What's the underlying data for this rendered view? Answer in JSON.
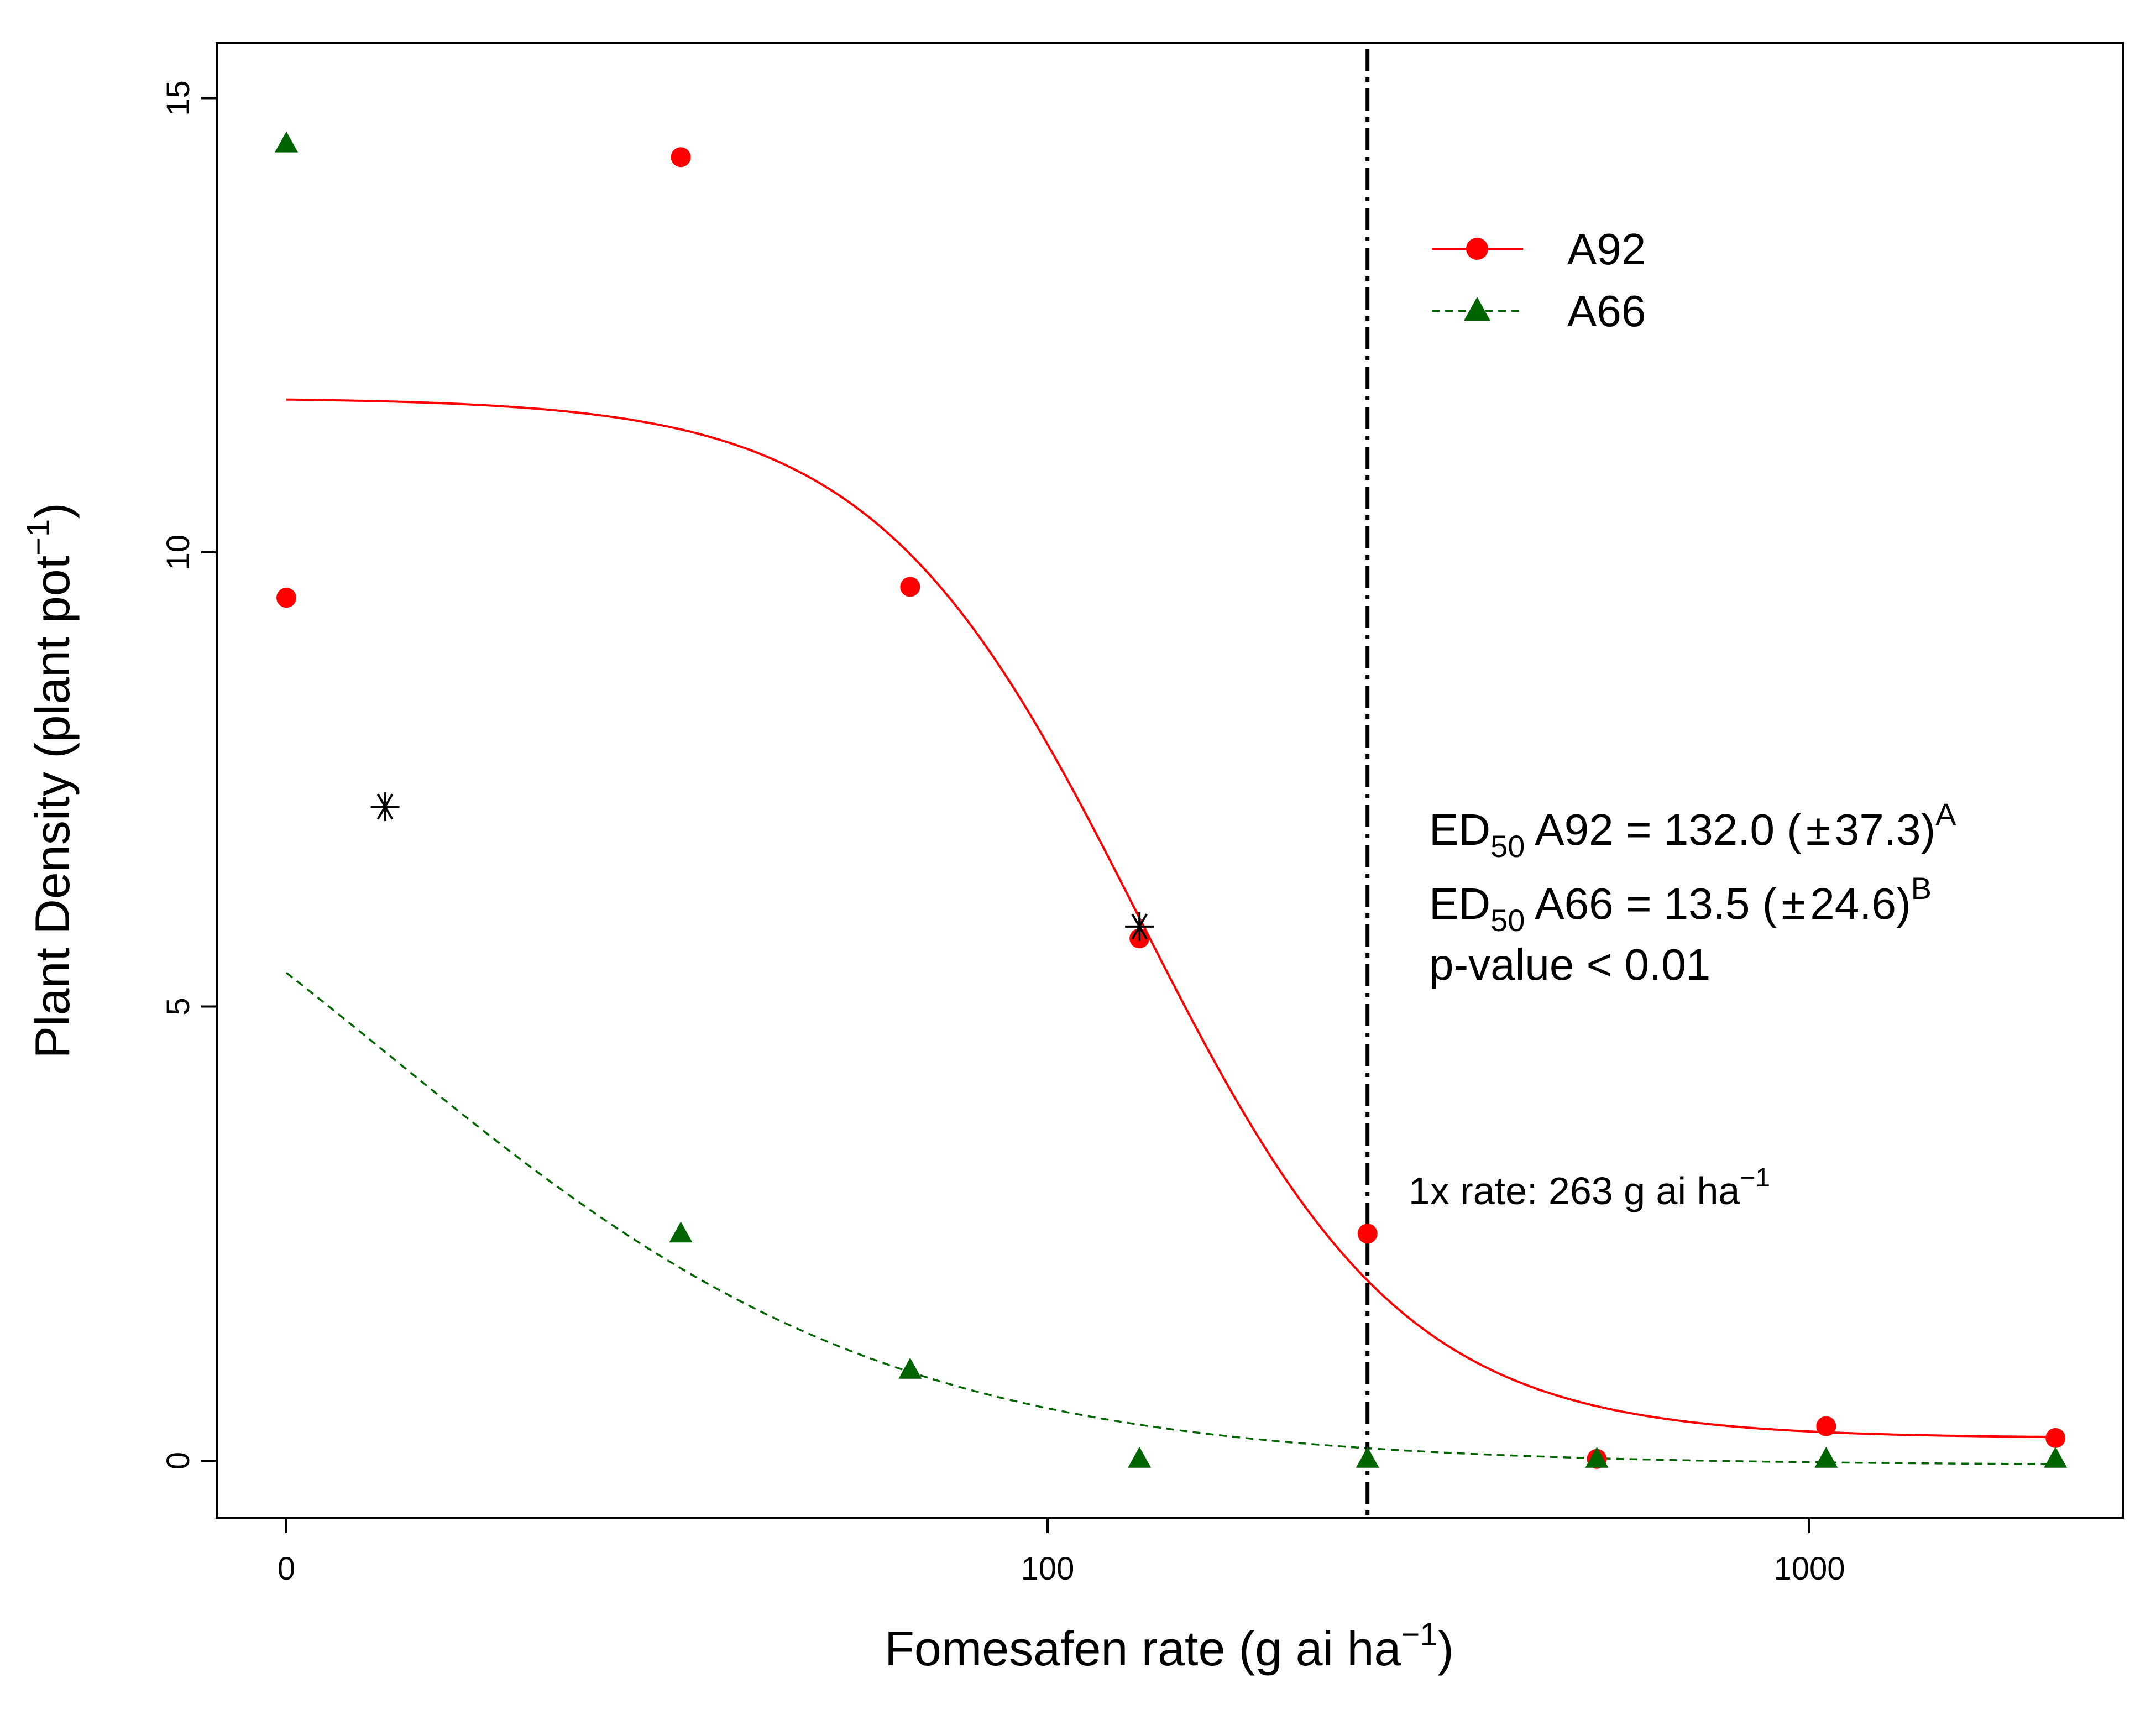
{
  "chart_data": {
    "type": "scatter",
    "xlabel": {
      "text": "Fomesafen rate (g ai ha",
      "sup": "−1",
      "close": ")"
    },
    "ylabel": {
      "text": "Plant Density (plant pot",
      "sup": "−1",
      "close": ")"
    },
    "x_scale": "log10 with the zero rate drawn at the axis origin",
    "xlim": [
      0,
      2000
    ],
    "ylim": [
      -0.6,
      15.6
    ],
    "x_ticks": [
      {
        "value": 0,
        "label": "0"
      },
      {
        "value": 100,
        "label": "100"
      },
      {
        "value": 1000,
        "label": "1000"
      }
    ],
    "y_ticks": [
      {
        "value": 0,
        "label": "0"
      },
      {
        "value": 5,
        "label": "5"
      },
      {
        "value": 10,
        "label": "10"
      },
      {
        "value": 15,
        "label": "15"
      }
    ],
    "grid": false,
    "legend_position": "top-right",
    "series": [
      {
        "name": "A92",
        "color": "#ff0000",
        "marker": "circle",
        "line": "solid",
        "points": [
          {
            "x": 0,
            "y": 9.5
          },
          {
            "x": 33,
            "y": 14.35
          },
          {
            "x": 66,
            "y": 9.62
          },
          {
            "x": 132,
            "y": 5.75
          },
          {
            "x": 263,
            "y": 2.5
          },
          {
            "x": 526,
            "y": 0.02
          },
          {
            "x": 1052,
            "y": 0.38
          },
          {
            "x": 2104,
            "y": 0.25
          }
        ],
        "fit": {
          "model": "log-logistic",
          "lower": 0.25,
          "upper": 11.7,
          "ed50": 132.0,
          "slope": 2.5
        }
      },
      {
        "name": "A66",
        "color": "#006400",
        "marker": "triangle",
        "line": "dashed",
        "points": [
          {
            "x": 0,
            "y": 14.5
          },
          {
            "x": 33,
            "y": 2.5
          },
          {
            "x": 66,
            "y": 1.0
          },
          {
            "x": 132,
            "y": 0.02
          },
          {
            "x": 263,
            "y": 0.02
          },
          {
            "x": 526,
            "y": 0.02
          },
          {
            "x": 1052,
            "y": 0.02
          },
          {
            "x": 2104,
            "y": 0.02
          }
        ],
        "fit": {
          "model": "log-logistic",
          "lower": -0.05,
          "upper": 9.05,
          "ed50": 13.5,
          "slope": 1.3
        }
      }
    ],
    "ed50_markers": [
      {
        "x": 13.5,
        "y": 7.2
      },
      {
        "x": 132,
        "y": 5.88
      }
    ],
    "reference_line": {
      "x": 263,
      "style": "dash-dot",
      "label": "1x rate: 263 g ai ha",
      "label_sup": "−1"
    },
    "annotations": [
      {
        "prefix": "ED",
        "sub": "50",
        "text": " A92 = 132.0 (",
        "pm": "±",
        "value": "37.3)",
        "sup": "A"
      },
      {
        "prefix": "ED",
        "sub": "50",
        "text": " A66 = 13.5 (",
        "pm": "±",
        "value": "24.6)",
        "sup": "B"
      },
      {
        "text": "p-value < 0.01"
      }
    ]
  }
}
